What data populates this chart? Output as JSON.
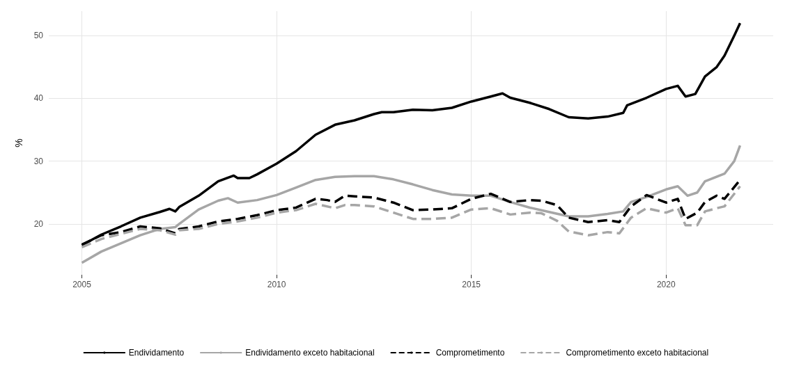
{
  "chart_data": {
    "type": "line",
    "ylabel": "%",
    "xlim": [
      2004.15,
      2022.75
    ],
    "xticks": [
      2005,
      2010,
      2015,
      2020
    ],
    "ylim": [
      11.9,
      53.9
    ],
    "yticks": [
      20,
      30,
      40,
      50
    ],
    "grid": true,
    "legend": "bottom",
    "marker": "none",
    "series": [
      {
        "name": "Endividamento",
        "color": "#000000",
        "line_style": "solid",
        "x": [
          2005.0,
          2005.5,
          2006.0,
          2006.5,
          2007.0,
          2007.25,
          2007.4,
          2007.5,
          2008.0,
          2008.5,
          2008.9,
          2009.0,
          2009.3,
          2009.5,
          2010.0,
          2010.5,
          2011.0,
          2011.5,
          2012.0,
          2012.5,
          2012.7,
          2013.0,
          2013.5,
          2014.0,
          2014.5,
          2015.0,
          2015.5,
          2015.8,
          2016.0,
          2016.5,
          2017.0,
          2017.5,
          2018.0,
          2018.5,
          2018.9,
          2019.0,
          2019.5,
          2020.0,
          2020.3,
          2020.5,
          2020.75,
          2021.0,
          2021.3,
          2021.5,
          2021.75,
          2021.9
        ],
        "values": [
          16.6,
          18.3,
          19.6,
          21.0,
          21.9,
          22.4,
          22.0,
          22.7,
          24.5,
          26.8,
          27.7,
          27.3,
          27.3,
          27.9,
          29.6,
          31.6,
          34.2,
          35.8,
          36.5,
          37.5,
          37.8,
          37.8,
          38.2,
          38.1,
          38.5,
          39.5,
          40.3,
          40.8,
          40.1,
          39.3,
          38.3,
          37.0,
          36.8,
          37.1,
          37.7,
          38.9,
          40.1,
          41.5,
          42.0,
          40.3,
          40.7,
          43.5,
          45.0,
          46.8,
          50.0,
          52.0
        ]
      },
      {
        "name": "Endividamento exceto habitacional",
        "color": "#a6a6a6",
        "line_style": "solid",
        "x": [
          2005.0,
          2005.5,
          2006.0,
          2006.5,
          2007.0,
          2007.4,
          2007.5,
          2008.0,
          2008.5,
          2008.75,
          2009.0,
          2009.5,
          2010.0,
          2010.5,
          2011.0,
          2011.5,
          2012.0,
          2012.5,
          2013.0,
          2013.5,
          2014.0,
          2014.5,
          2015.0,
          2015.5,
          2016.0,
          2016.5,
          2017.0,
          2017.5,
          2018.0,
          2018.5,
          2018.9,
          2019.1,
          2019.5,
          2020.0,
          2020.3,
          2020.55,
          2020.8,
          2021.0,
          2021.5,
          2021.75,
          2021.9
        ],
        "values": [
          13.8,
          15.6,
          16.9,
          18.2,
          19.2,
          19.5,
          20.0,
          22.3,
          23.7,
          24.1,
          23.4,
          23.8,
          24.6,
          25.8,
          27.0,
          27.5,
          27.6,
          27.6,
          27.1,
          26.3,
          25.4,
          24.7,
          24.5,
          24.5,
          23.5,
          22.6,
          21.9,
          21.2,
          21.2,
          21.6,
          22.0,
          23.5,
          24.3,
          25.5,
          26.0,
          24.5,
          25.0,
          26.8,
          28.0,
          30.0,
          32.5
        ]
      },
      {
        "name": "Comprometimento",
        "color": "#000000",
        "line_style": "dashed",
        "x": [
          2005.0,
          2005.5,
          2006.0,
          2006.5,
          2007.0,
          2007.4,
          2007.5,
          2008.0,
          2008.5,
          2009.0,
          2009.5,
          2010.0,
          2010.5,
          2011.0,
          2011.3,
          2011.5,
          2011.75,
          2012.0,
          2012.5,
          2013.0,
          2013.5,
          2014.0,
          2014.5,
          2015.0,
          2015.5,
          2016.0,
          2016.5,
          2016.8,
          2017.2,
          2017.5,
          2018.0,
          2018.5,
          2018.8,
          2019.1,
          2019.5,
          2020.0,
          2020.3,
          2020.5,
          2020.8,
          2021.0,
          2021.3,
          2021.5,
          2021.9
        ],
        "values": [
          16.7,
          18.2,
          18.7,
          19.6,
          19.3,
          18.5,
          19.2,
          19.6,
          20.4,
          20.8,
          21.4,
          22.2,
          22.6,
          24.0,
          23.8,
          23.5,
          24.5,
          24.4,
          24.2,
          23.4,
          22.2,
          22.3,
          22.5,
          24.0,
          24.8,
          23.5,
          23.8,
          23.7,
          23.0,
          21.0,
          20.3,
          20.6,
          20.3,
          22.8,
          24.6,
          23.4,
          24.0,
          20.8,
          21.8,
          23.5,
          24.5,
          24.0,
          27.0
        ]
      },
      {
        "name": "Comprometimento exceto habitacional",
        "color": "#a6a6a6",
        "line_style": "dashed",
        "x": [
          2005.0,
          2005.5,
          2006.0,
          2006.5,
          2007.0,
          2007.4,
          2007.5,
          2008.0,
          2008.5,
          2009.0,
          2009.5,
          2010.0,
          2010.5,
          2011.0,
          2011.5,
          2011.75,
          2012.0,
          2012.5,
          2013.0,
          2013.5,
          2014.0,
          2014.5,
          2015.0,
          2015.5,
          2016.0,
          2016.5,
          2016.8,
          2017.2,
          2017.5,
          2018.0,
          2018.5,
          2018.8,
          2019.1,
          2019.5,
          2020.0,
          2020.3,
          2020.5,
          2020.8,
          2021.0,
          2021.3,
          2021.5,
          2021.9
        ],
        "values": [
          16.3,
          17.6,
          18.4,
          19.2,
          19.0,
          18.3,
          19.0,
          19.2,
          20.0,
          20.4,
          21.0,
          21.8,
          22.2,
          23.2,
          22.5,
          23.0,
          23.0,
          22.8,
          21.8,
          20.8,
          20.8,
          21.0,
          22.3,
          22.5,
          21.5,
          21.8,
          21.7,
          20.5,
          18.8,
          18.2,
          18.7,
          18.5,
          21.0,
          22.5,
          21.8,
          22.5,
          19.8,
          19.8,
          22.0,
          22.5,
          22.8,
          26.0
        ]
      }
    ]
  }
}
